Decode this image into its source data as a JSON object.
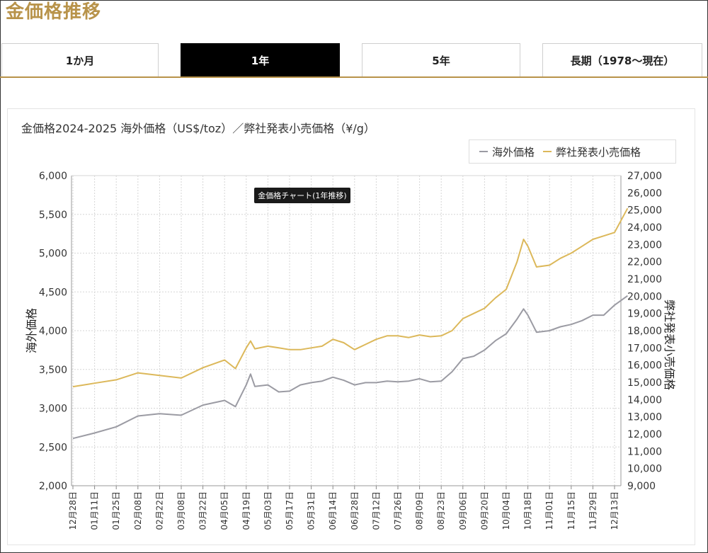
{
  "page": {
    "title": "金価格推移"
  },
  "tabs": [
    {
      "label": "1か月",
      "active": false
    },
    {
      "label": "1年",
      "active": true
    },
    {
      "label": "5年",
      "active": false
    },
    {
      "label": "長期（1978～現在）",
      "active": false
    }
  ],
  "colors": {
    "accent": "#b8934a",
    "series_overseas": "#9b9ba3",
    "series_retail": "#dcb85a"
  },
  "chart_data": {
    "type": "line",
    "title": "金価格2024-2025 海外価格（US$/toz）／弊社発表小売価格（¥/g）",
    "tooltip": "金価格チャート(1年推移)",
    "ylabel_left": "海外価格",
    "ylabel_right": "弊社発表小売価格",
    "ylim_left": [
      2000,
      6000
    ],
    "ylim_right": [
      9000,
      27000
    ],
    "yticks_left": [
      "2,000",
      "2,500",
      "3,000",
      "3,500",
      "4,000",
      "4,500",
      "5,000",
      "5,500",
      "6,000"
    ],
    "yticks_right": [
      "9,000",
      "10,000",
      "11,000",
      "12,000",
      "13,000",
      "14,000",
      "15,000",
      "16,000",
      "17,000",
      "18,000",
      "19,000",
      "20,000",
      "21,000",
      "22,000",
      "23,000",
      "24,000",
      "25,000",
      "26,000",
      "27,000"
    ],
    "grid": true,
    "legend_position": "top-right",
    "x": [
      "12月28日",
      "01月11日",
      "01月25日",
      "02月08日",
      "02月22日",
      "03月08日",
      "03月22日",
      "04月05日",
      "04月19日",
      "05月03日",
      "05月17日",
      "05月31日",
      "06月14日",
      "06月28日",
      "07月12日",
      "07月26日",
      "08月09日",
      "08月23日",
      "09月06日",
      "09月20日",
      "10月04日",
      "10月18日",
      "11月01日",
      "11月15日",
      "11月29日",
      "12月13日"
    ],
    "series": [
      {
        "name": "海外価格",
        "axis": "left",
        "color": "#9b9ba3",
        "points": [
          [
            0,
            2610
          ],
          [
            1,
            2680
          ],
          [
            2,
            2760
          ],
          [
            3,
            2900
          ],
          [
            4,
            2930
          ],
          [
            5,
            2910
          ],
          [
            6,
            3040
          ],
          [
            7,
            3100
          ],
          [
            7.5,
            3020
          ],
          [
            8,
            3300
          ],
          [
            8.2,
            3440
          ],
          [
            8.4,
            3280
          ],
          [
            9,
            3300
          ],
          [
            9.5,
            3210
          ],
          [
            10,
            3220
          ],
          [
            10.5,
            3300
          ],
          [
            11,
            3330
          ],
          [
            11.5,
            3350
          ],
          [
            12,
            3400
          ],
          [
            12.5,
            3360
          ],
          [
            13,
            3300
          ],
          [
            13.5,
            3330
          ],
          [
            14,
            3330
          ],
          [
            14.5,
            3350
          ],
          [
            15,
            3340
          ],
          [
            15.5,
            3350
          ],
          [
            16,
            3380
          ],
          [
            16.5,
            3340
          ],
          [
            17,
            3350
          ],
          [
            17.5,
            3470
          ],
          [
            18,
            3640
          ],
          [
            18.5,
            3670
          ],
          [
            19,
            3750
          ],
          [
            19.5,
            3870
          ],
          [
            20,
            3960
          ],
          [
            20.5,
            4150
          ],
          [
            20.8,
            4280
          ],
          [
            21,
            4200
          ],
          [
            21.4,
            3980
          ],
          [
            22,
            4000
          ],
          [
            22.5,
            4050
          ],
          [
            23,
            4080
          ],
          [
            23.5,
            4130
          ],
          [
            24,
            4200
          ],
          [
            24.5,
            4200
          ],
          [
            25,
            4330
          ],
          [
            25.6,
            4450
          ]
        ]
      },
      {
        "name": "弊社発表小売価格",
        "axis": "right",
        "color": "#dcb85a",
        "points": [
          [
            0,
            14750
          ],
          [
            1,
            14950
          ],
          [
            2,
            15150
          ],
          [
            3,
            15550
          ],
          [
            4,
            15400
          ],
          [
            5,
            15250
          ],
          [
            6,
            15850
          ],
          [
            7,
            16300
          ],
          [
            7.5,
            15800
          ],
          [
            8,
            17000
          ],
          [
            8.2,
            17400
          ],
          [
            8.4,
            16950
          ],
          [
            9,
            17100
          ],
          [
            9.5,
            17000
          ],
          [
            10,
            16900
          ],
          [
            10.5,
            16900
          ],
          [
            11,
            17000
          ],
          [
            11.5,
            17100
          ],
          [
            12,
            17500
          ],
          [
            12.5,
            17300
          ],
          [
            13,
            16900
          ],
          [
            13.5,
            17200
          ],
          [
            14,
            17500
          ],
          [
            14.5,
            17700
          ],
          [
            15,
            17700
          ],
          [
            15.5,
            17600
          ],
          [
            16,
            17750
          ],
          [
            16.5,
            17650
          ],
          [
            17,
            17700
          ],
          [
            17.5,
            18000
          ],
          [
            18,
            18700
          ],
          [
            18.5,
            19000
          ],
          [
            19,
            19300
          ],
          [
            19.5,
            19900
          ],
          [
            20,
            20400
          ],
          [
            20.5,
            22000
          ],
          [
            20.8,
            23300
          ],
          [
            21,
            22900
          ],
          [
            21.4,
            21700
          ],
          [
            22,
            21800
          ],
          [
            22.5,
            22200
          ],
          [
            23,
            22500
          ],
          [
            23.5,
            22900
          ],
          [
            24,
            23300
          ],
          [
            24.5,
            23500
          ],
          [
            25,
            23700
          ],
          [
            25.6,
            25100
          ]
        ]
      }
    ]
  }
}
